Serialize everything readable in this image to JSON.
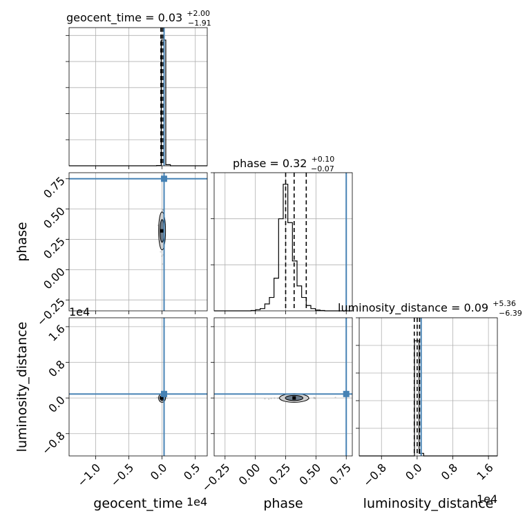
{
  "chart_data": {
    "type": "corner",
    "accent_color": "#4682b4",
    "grid": true,
    "parameters": [
      {
        "name": "geocent_time",
        "median": "0.03",
        "plus": "+2.00",
        "minus": "−1.91",
        "truth": 0.03
      },
      {
        "name": "phase",
        "median": "0.32",
        "plus": "+0.10",
        "minus": "−0.07",
        "truth": 0.75
      },
      {
        "name": "luminosity_distance",
        "median": "0.09",
        "plus": "+5.36",
        "minus": "−6.39",
        "truth": 0.09
      }
    ],
    "titles": {
      "geocent_time": {
        "lhs": "geocent_time = 0.03",
        "plus": "+2.00",
        "minus": "−1.91"
      },
      "phase": {
        "lhs": "phase = 0.32",
        "plus": "+0.10",
        "minus": "−0.07"
      },
      "luminosity_distance": {
        "lhs": "luminosity_distance = 0.09",
        "plus": "+5.36",
        "minus": "−6.39"
      }
    },
    "xlabels": {
      "geocent_time": "geocent_time",
      "phase": "phase",
      "luminosity_distance": "luminosity_distance"
    },
    "ylabels": {
      "phase": "phase",
      "luminosity_distance": "luminosity_distance"
    },
    "offset_text": {
      "geocent_time_x": "1e4",
      "luminosity_distance_x": "1e4",
      "luminosity_distance_y": "1e4"
    },
    "ranges": {
      "geocent_time": [
        -1.4,
        0.68
      ],
      "phase": [
        -0.34,
        0.8
      ],
      "luminosity_distance": [
        -1.3,
        1.8
      ]
    },
    "ticks": {
      "geocent_time": {
        "values": [
          -1.0,
          -0.5,
          0.0,
          0.5
        ],
        "labels": [
          "−1.0",
          "−0.5",
          "0.0",
          "0.5"
        ]
      },
      "phase": {
        "values": [
          -0.25,
          0.0,
          0.25,
          0.5,
          0.75
        ],
        "labels": [
          "−0.25",
          "0.00",
          "0.25",
          "0.50",
          "0.75"
        ]
      },
      "luminosity_distance": {
        "values": [
          -0.8,
          0.0,
          0.8,
          1.6
        ],
        "labels": [
          "−0.8",
          "0.0",
          "0.8",
          "1.6"
        ]
      }
    },
    "quantiles": {
      "geocent_time": [
        -0.0191,
        0.0003,
        0.0203
      ],
      "phase": [
        0.25,
        0.32,
        0.42
      ],
      "luminosity_distance": [
        -0.0639,
        0.0009,
        0.0545
      ]
    },
    "histograms": {
      "geocent_time": {
        "edges": [
          -1.4,
          -1.3307,
          -1.2613,
          -1.192,
          -1.1227,
          -1.0533,
          -0.984,
          -0.9147,
          -0.8453,
          -0.776,
          -0.7067,
          -0.6373,
          -0.568,
          -0.4987,
          -0.4293,
          -0.36,
          -0.2907,
          -0.2213,
          -0.152,
          -0.0827,
          -0.0133,
          0.056,
          0.1253,
          0.1947,
          0.264,
          0.3333,
          0.4027,
          0.472,
          0.5413,
          0.6107,
          0.68
        ],
        "counts": [
          0,
          0,
          0,
          0,
          0,
          0,
          0,
          0,
          0,
          0,
          0,
          0,
          0,
          0,
          0,
          0,
          0,
          0,
          0,
          2,
          910,
          8,
          0,
          0,
          0,
          0,
          0,
          0,
          0,
          0
        ],
        "ylim": [
          0,
          1000
        ],
        "ytick_count": 5
      },
      "phase": {
        "edges": [
          -0.34,
          -0.302,
          -0.264,
          -0.226,
          -0.188,
          -0.15,
          -0.112,
          -0.074,
          -0.036,
          0.002,
          0.04,
          0.078,
          0.116,
          0.154,
          0.192,
          0.23,
          0.268,
          0.306,
          0.344,
          0.382,
          0.42,
          0.458,
          0.496,
          0.534,
          0.572,
          0.61,
          0.648,
          0.686,
          0.724,
          0.762,
          0.8
        ],
        "counts": [
          0,
          0,
          0,
          0,
          0,
          0,
          0,
          0,
          1,
          3,
          6,
          18,
          35,
          85,
          240,
          330,
          230,
          130,
          65,
          35,
          14,
          6,
          2,
          1,
          0,
          0,
          0,
          0,
          0,
          0
        ],
        "ylim": [
          0,
          360
        ],
        "ytick_count": 3
      },
      "luminosity_distance": {
        "edges": [
          -1.3,
          -1.1967,
          -1.0933,
          -0.99,
          -0.8867,
          -0.7833,
          -0.68,
          -0.5767,
          -0.4733,
          -0.37,
          -0.2667,
          -0.1633,
          -0.06,
          0.0433,
          0.1467,
          0.25,
          0.3533,
          0.4567,
          0.56,
          0.6633,
          0.7667,
          0.87,
          0.9733,
          1.0767,
          1.18,
          1.2833,
          1.3867,
          1.49,
          1.5933,
          1.6967,
          1.8
        ],
        "counts": [
          0,
          0,
          0,
          0,
          0,
          0,
          0,
          0,
          0,
          0,
          0,
          0,
          1000,
          22,
          0,
          0,
          0,
          0,
          0,
          0,
          0,
          0,
          0,
          0,
          0,
          0,
          0,
          0,
          0,
          0
        ],
        "ylim": [
          0,
          1200
        ],
        "ytick_count": 5
      }
    }
  }
}
